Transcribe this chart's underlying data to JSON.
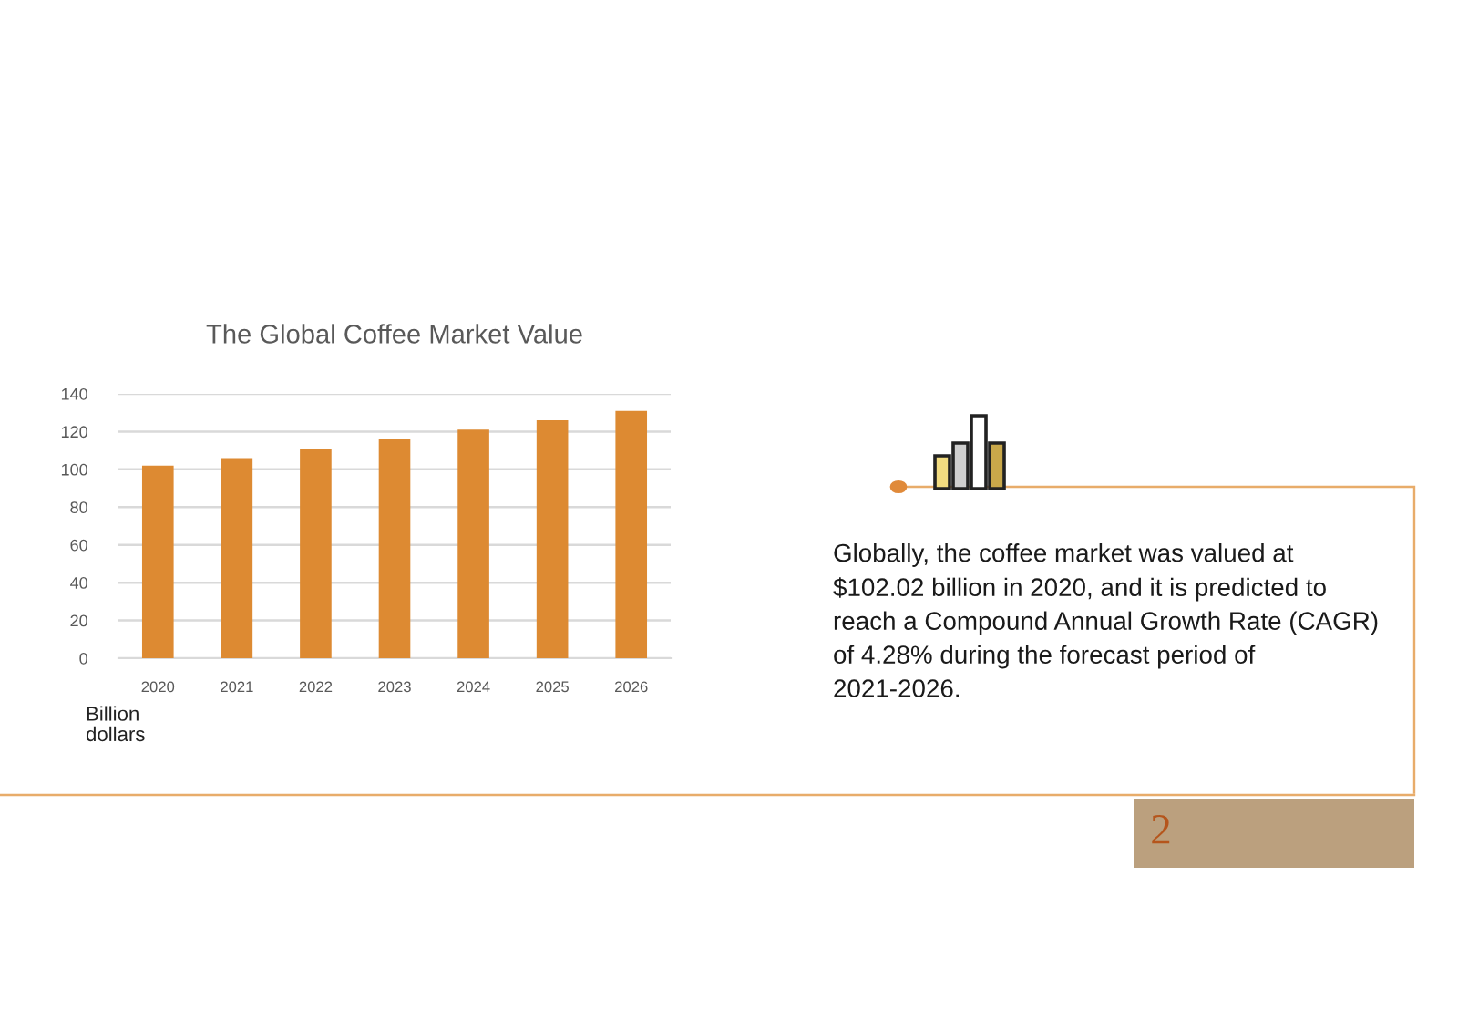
{
  "chart_data": {
    "type": "bar",
    "title": "The Global Coffee Market Value",
    "ylabel": "Billion dollars",
    "categories": [
      "2020",
      "2021",
      "2022",
      "2023",
      "2024",
      "2025",
      "2026"
    ],
    "values": [
      102,
      106,
      111,
      116,
      121,
      126,
      131
    ],
    "color": "#dd8a32",
    "ylim": [
      0,
      140
    ],
    "yticks": [
      0,
      20,
      40,
      60,
      80,
      100,
      120,
      140
    ],
    "grid": "y",
    "annotations": [
      "Globally, the coffee market was valued at $102.02 billion in 2020, and it is predicted to reach a Compound Annual Growth Rate (CAGR) of 4.28% during the forecast period of 2021-2026.",
      "2"
    ]
  }
}
